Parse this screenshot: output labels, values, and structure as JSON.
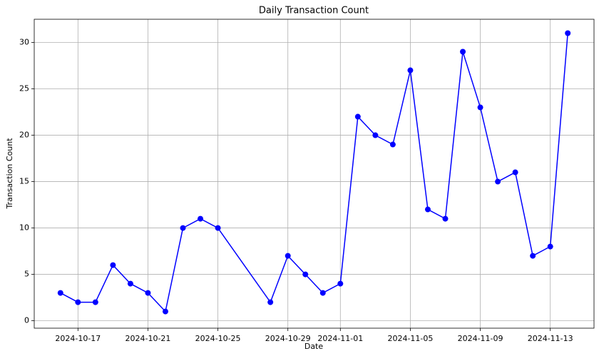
{
  "chart_data": {
    "type": "line",
    "title": "Daily Transaction Count",
    "x_label": "Date",
    "y_label": "Transaction Count",
    "x": [
      "2024-10-16",
      "2024-10-17",
      "2024-10-18",
      "2024-10-19",
      "2024-10-20",
      "2024-10-21",
      "2024-10-22",
      "2024-10-23",
      "2024-10-24",
      "2024-10-25",
      "2024-10-28",
      "2024-10-29",
      "2024-10-30",
      "2024-10-31",
      "2024-11-01",
      "2024-11-02",
      "2024-11-03",
      "2024-11-04",
      "2024-11-05",
      "2024-11-06",
      "2024-11-07",
      "2024-11-08",
      "2024-11-09",
      "2024-11-10",
      "2024-11-11",
      "2024-11-12",
      "2024-11-13",
      "2024-11-14"
    ],
    "values": [
      3,
      2,
      2,
      6,
      4,
      3,
      1,
      10,
      11,
      10,
      2,
      7,
      5,
      3,
      4,
      22,
      20,
      19,
      27,
      12,
      11,
      29,
      23,
      15,
      16,
      7,
      8,
      31
    ],
    "color": "#0000ff",
    "marker": "circle",
    "xlim": [
      "2024-10-14T12:00",
      "2024-11-15T12:00"
    ],
    "xticks": [
      "2024-10-17",
      "2024-10-21",
      "2024-10-25",
      "2024-10-29",
      "2024-11-01",
      "2024-11-05",
      "2024-11-09",
      "2024-11-13"
    ],
    "ylim": [
      -0.8,
      32.5
    ],
    "yticks": [
      0,
      5,
      10,
      15,
      20,
      25,
      30
    ],
    "grid": true
  }
}
